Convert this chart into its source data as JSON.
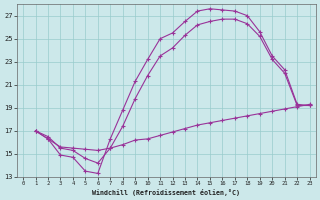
{
  "xlabel": "Windchill (Refroidissement éolien,°C)",
  "bg_color": "#cce8ea",
  "grid_color": "#99cccc",
  "line_color": "#993399",
  "xlim": [
    -0.5,
    23.5
  ],
  "ylim": [
    13,
    28
  ],
  "xticks": [
    0,
    1,
    2,
    3,
    4,
    5,
    6,
    7,
    8,
    9,
    10,
    11,
    12,
    13,
    14,
    15,
    16,
    17,
    18,
    19,
    20,
    21,
    22,
    23
  ],
  "yticks": [
    13,
    15,
    17,
    19,
    21,
    23,
    25,
    27
  ],
  "series": [
    {
      "x": [
        1,
        2,
        3,
        4,
        5,
        6,
        7,
        8,
        9,
        10,
        11,
        12,
        13,
        14,
        15,
        16,
        17,
        18,
        19,
        20,
        21,
        22,
        23
      ],
      "y": [
        17.0,
        16.3,
        14.9,
        14.7,
        13.5,
        13.3,
        16.3,
        18.8,
        21.3,
        23.2,
        25.0,
        25.5,
        26.5,
        27.4,
        27.6,
        27.5,
        27.4,
        27.0,
        25.6,
        23.5,
        22.3,
        19.3,
        19.2
      ]
    },
    {
      "x": [
        1,
        2,
        3,
        4,
        5,
        6,
        7,
        8,
        9,
        10,
        11,
        12,
        13,
        14,
        15,
        16,
        17,
        18,
        19,
        20,
        21,
        22,
        23
      ],
      "y": [
        17.0,
        16.5,
        15.5,
        15.3,
        14.6,
        14.2,
        15.5,
        17.4,
        19.8,
        21.8,
        23.5,
        24.2,
        25.3,
        26.2,
        26.5,
        26.7,
        26.7,
        26.3,
        25.2,
        23.2,
        22.0,
        19.2,
        19.2
      ]
    },
    {
      "x": [
        1,
        2,
        3,
        4,
        5,
        6,
        7,
        8,
        9,
        10,
        11,
        12,
        13,
        14,
        15,
        16,
        17,
        18,
        19,
        20,
        21,
        22,
        23
      ],
      "y": [
        17.0,
        16.3,
        15.6,
        15.5,
        15.4,
        15.3,
        15.5,
        15.8,
        16.2,
        16.3,
        16.6,
        16.9,
        17.2,
        17.5,
        17.7,
        17.9,
        18.1,
        18.3,
        18.5,
        18.7,
        18.9,
        19.1,
        19.3
      ]
    }
  ]
}
